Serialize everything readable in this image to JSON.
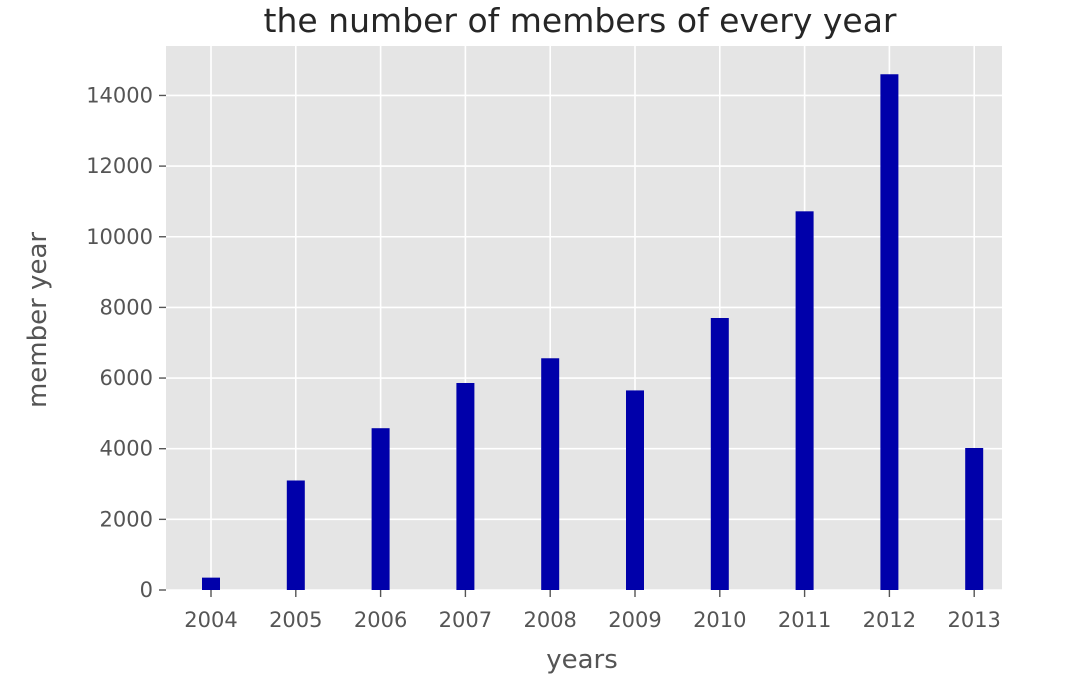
{
  "chart_data": {
    "type": "bar",
    "title": "the number of members of every year",
    "xlabel": "years",
    "ylabel": "member year",
    "categories": [
      "2004",
      "2005",
      "2006",
      "2007",
      "2008",
      "2009",
      "2010",
      "2011",
      "2012",
      "2013"
    ],
    "values": [
      350,
      3100,
      4580,
      5860,
      6560,
      5650,
      7700,
      10720,
      14600,
      4020
    ],
    "ylim": [
      0,
      15400
    ],
    "yticks": [
      0,
      2000,
      4000,
      6000,
      8000,
      10000,
      12000,
      14000
    ],
    "grid": true,
    "colors": {
      "bar": "#0000aa",
      "plot_background": "#e5e5e5",
      "grid": "#ffffff"
    }
  }
}
